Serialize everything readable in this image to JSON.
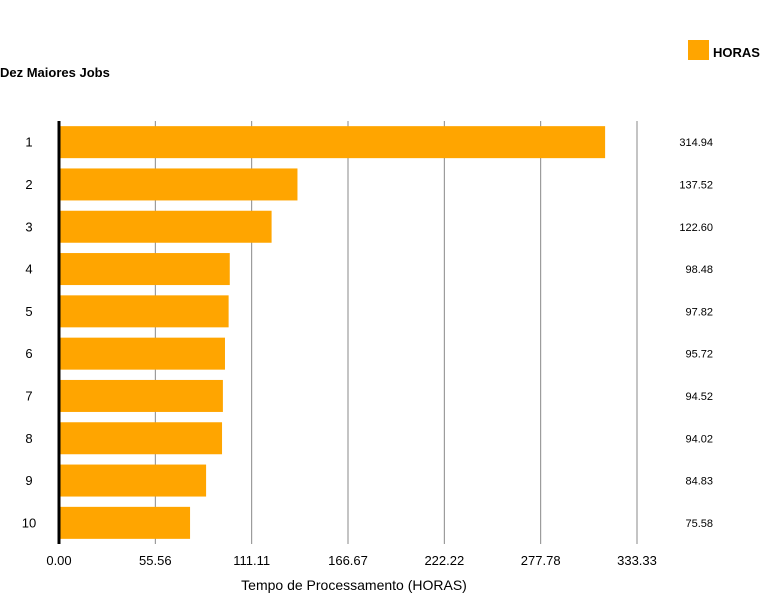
{
  "chart_data": {
    "type": "bar",
    "orientation": "horizontal",
    "title": "Dez Maiores Jobs",
    "xlabel": "Tempo de Processamento (HORAS)",
    "ylabel": "",
    "legend": {
      "position": "top-right",
      "entries": [
        "HORAS"
      ]
    },
    "grid": true,
    "xlim": [
      0,
      333.33
    ],
    "x_ticks": [
      "0.00",
      "55.56",
      "111.11",
      "166.67",
      "222.22",
      "277.78",
      "333.33"
    ],
    "categories": [
      "1",
      "2",
      "3",
      "4",
      "5",
      "6",
      "7",
      "8",
      "9",
      "10"
    ],
    "series": [
      {
        "name": "HORAS",
        "color": "#FFA500",
        "values": [
          314.94,
          137.52,
          122.6,
          98.48,
          97.82,
          95.72,
          94.52,
          94.02,
          84.83,
          75.58
        ],
        "value_labels": [
          "314.94",
          "137.52",
          "122.60",
          "98.48",
          "97.82",
          "95.72",
          "94.52",
          "94.02",
          "84.83",
          "75.58"
        ]
      }
    ]
  }
}
